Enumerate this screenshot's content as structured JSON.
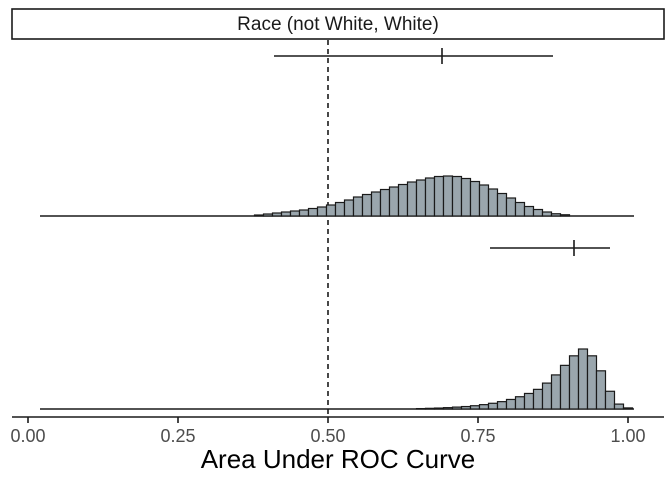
{
  "chart_data": {
    "type": "histogram",
    "panel_title": "Race (not White, White)",
    "xlabel": "Area Under ROC Curve",
    "xlim": [
      0.0,
      1.0
    ],
    "xticks": [
      0.0,
      0.25,
      0.5,
      0.75,
      1.0
    ],
    "xtick_labels": [
      "0.00",
      "0.25",
      "0.50",
      "0.75",
      "1.00"
    ],
    "reference_line": 0.5,
    "grid": false,
    "bar_color": "#9aa6ad",
    "bin_width": 0.015,
    "rows": [
      {
        "interval": {
          "low": 0.41,
          "mid": 0.69,
          "high": 0.875
        },
        "bins": [
          {
            "x": 0.385,
            "density": 0.2
          },
          {
            "x": 0.4,
            "density": 0.4
          },
          {
            "x": 0.415,
            "density": 0.6
          },
          {
            "x": 0.43,
            "density": 0.8
          },
          {
            "x": 0.445,
            "density": 1.0
          },
          {
            "x": 0.46,
            "density": 1.2
          },
          {
            "x": 0.475,
            "density": 1.5
          },
          {
            "x": 0.49,
            "density": 1.8
          },
          {
            "x": 0.505,
            "density": 2.2
          },
          {
            "x": 0.52,
            "density": 2.7
          },
          {
            "x": 0.535,
            "density": 3.2
          },
          {
            "x": 0.55,
            "density": 3.8
          },
          {
            "x": 0.565,
            "density": 4.3
          },
          {
            "x": 0.58,
            "density": 4.8
          },
          {
            "x": 0.595,
            "density": 5.3
          },
          {
            "x": 0.61,
            "density": 5.8
          },
          {
            "x": 0.625,
            "density": 6.3
          },
          {
            "x": 0.64,
            "density": 6.8
          },
          {
            "x": 0.655,
            "density": 7.2
          },
          {
            "x": 0.67,
            "density": 7.6
          },
          {
            "x": 0.685,
            "density": 7.9
          },
          {
            "x": 0.7,
            "density": 8.0
          },
          {
            "x": 0.715,
            "density": 7.9
          },
          {
            "x": 0.73,
            "density": 7.5
          },
          {
            "x": 0.745,
            "density": 6.9
          },
          {
            "x": 0.76,
            "density": 6.2
          },
          {
            "x": 0.775,
            "density": 5.4
          },
          {
            "x": 0.79,
            "density": 4.5
          },
          {
            "x": 0.805,
            "density": 3.6
          },
          {
            "x": 0.82,
            "density": 2.7
          },
          {
            "x": 0.835,
            "density": 1.9
          },
          {
            "x": 0.85,
            "density": 1.3
          },
          {
            "x": 0.865,
            "density": 0.8
          },
          {
            "x": 0.88,
            "density": 0.45
          },
          {
            "x": 0.895,
            "density": 0.25
          }
        ]
      },
      {
        "interval": {
          "low": 0.77,
          "mid": 0.91,
          "high": 0.97
        },
        "bins": [
          {
            "x": 0.655,
            "density": 0.15
          },
          {
            "x": 0.67,
            "density": 0.25
          },
          {
            "x": 0.685,
            "density": 0.35
          },
          {
            "x": 0.7,
            "density": 0.5
          },
          {
            "x": 0.715,
            "density": 0.7
          },
          {
            "x": 0.73,
            "density": 0.9
          },
          {
            "x": 0.745,
            "density": 1.2
          },
          {
            "x": 0.76,
            "density": 1.6
          },
          {
            "x": 0.775,
            "density": 2.1
          },
          {
            "x": 0.79,
            "density": 2.7
          },
          {
            "x": 0.805,
            "density": 3.5
          },
          {
            "x": 0.82,
            "density": 4.5
          },
          {
            "x": 0.835,
            "density": 5.7
          },
          {
            "x": 0.85,
            "density": 7.2
          },
          {
            "x": 0.865,
            "density": 9.5
          },
          {
            "x": 0.88,
            "density": 12.5
          },
          {
            "x": 0.895,
            "density": 16.0
          },
          {
            "x": 0.91,
            "density": 19.5
          },
          {
            "x": 0.925,
            "density": 22.0
          },
          {
            "x": 0.94,
            "density": 19.5
          },
          {
            "x": 0.955,
            "density": 14.0
          },
          {
            "x": 0.97,
            "density": 6.5
          },
          {
            "x": 0.985,
            "density": 1.8
          },
          {
            "x": 1.0,
            "density": 0.4
          }
        ]
      }
    ]
  }
}
